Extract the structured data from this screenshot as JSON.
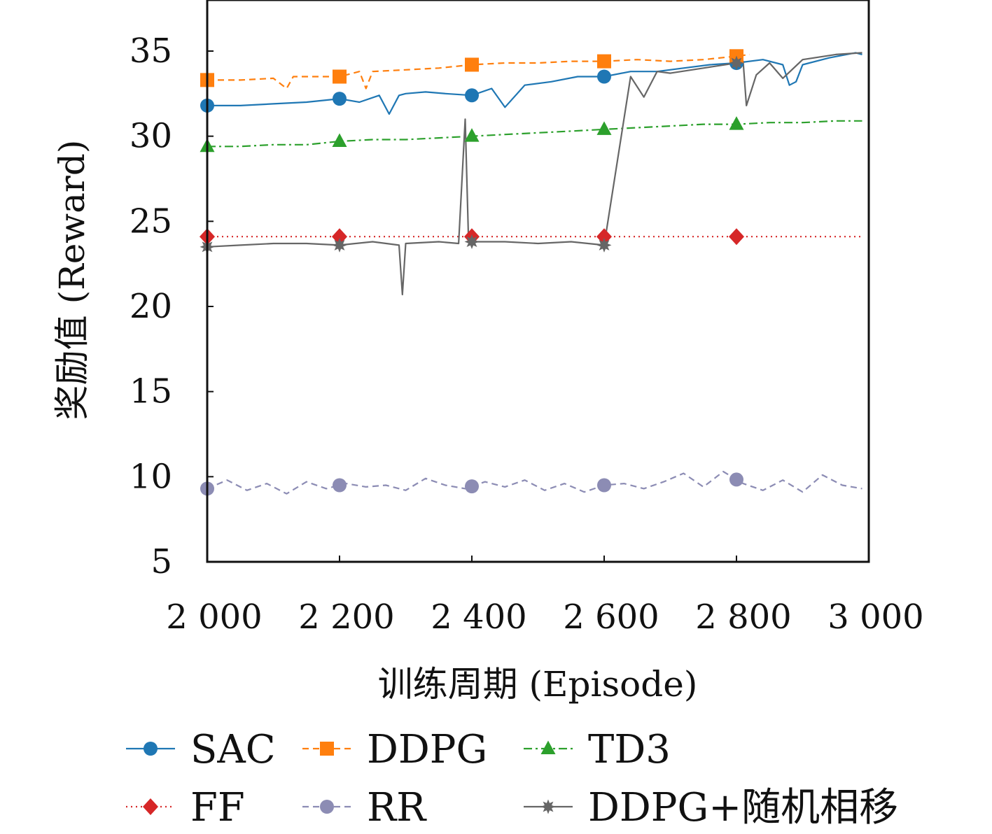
{
  "chart_data": {
    "type": "line",
    "xlabel": "训练周期 (Episode)",
    "ylabel": "奖励值 (Reward)",
    "xlim": [
      2000,
      3000
    ],
    "ylim": [
      5,
      38
    ],
    "xticks": [
      2000,
      2200,
      2400,
      2600,
      2800,
      3000
    ],
    "xtick_labels": [
      "2 000",
      "2 200",
      "2 400",
      "2 600",
      "2 800",
      "3 000"
    ],
    "yticks": [
      5,
      10,
      15,
      20,
      25,
      30,
      35
    ],
    "ytick_labels": [
      "5",
      "10",
      "15",
      "20",
      "25",
      "30",
      "35"
    ],
    "grid": false,
    "legend_position": "bottom",
    "series": [
      {
        "name": "SAC",
        "color": "#1f77b4",
        "line_style": "solid",
        "marker": "circle",
        "x": [
          2000,
          2050,
          2100,
          2150,
          2200,
          2230,
          2260,
          2275,
          2290,
          2300,
          2330,
          2360,
          2400,
          2430,
          2450,
          2480,
          2520,
          2560,
          2600,
          2640,
          2680,
          2720,
          2760,
          2800,
          2840,
          2870,
          2880,
          2890,
          2900,
          2940,
          2980,
          2990
        ],
        "y": [
          31.8,
          31.8,
          31.9,
          32.0,
          32.2,
          32.0,
          32.4,
          31.3,
          32.4,
          32.5,
          32.6,
          32.5,
          32.4,
          32.8,
          31.7,
          33.0,
          33.2,
          33.5,
          33.5,
          33.8,
          33.8,
          34.0,
          34.2,
          34.3,
          34.5,
          34.2,
          33.0,
          33.2,
          34.2,
          34.6,
          34.9,
          34.8
        ]
      },
      {
        "name": "DDPG",
        "color": "#ff7f0e",
        "line_style": "dashed",
        "marker": "square",
        "x": [
          2000,
          2050,
          2100,
          2120,
          2130,
          2150,
          2200,
          2230,
          2240,
          2250,
          2300,
          2350,
          2400,
          2450,
          2500,
          2550,
          2600,
          2650,
          2700,
          2750,
          2800,
          2820
        ],
        "y": [
          33.3,
          33.3,
          33.4,
          32.8,
          33.5,
          33.5,
          33.5,
          33.8,
          32.8,
          33.8,
          33.9,
          34.0,
          34.2,
          34.3,
          34.3,
          34.4,
          34.4,
          34.5,
          34.4,
          34.5,
          34.7,
          34.8
        ]
      },
      {
        "name": "TD3",
        "color": "#2ca02c",
        "line_style": "dashdot",
        "marker": "triangle",
        "x": [
          2000,
          2050,
          2100,
          2150,
          2200,
          2250,
          2300,
          2350,
          2400,
          2450,
          2500,
          2550,
          2600,
          2650,
          2700,
          2750,
          2800,
          2850,
          2900,
          2950,
          2990
        ],
        "y": [
          29.4,
          29.4,
          29.5,
          29.5,
          29.7,
          29.8,
          29.8,
          29.9,
          30.0,
          30.1,
          30.2,
          30.3,
          30.4,
          30.5,
          30.6,
          30.7,
          30.7,
          30.8,
          30.8,
          30.9,
          30.9
        ]
      },
      {
        "name": "FF",
        "color": "#d62728",
        "line_style": "dotted",
        "marker": "diamond",
        "x": [
          2000,
          2200,
          2400,
          2600,
          2800,
          2990
        ],
        "y": [
          24.1,
          24.1,
          24.1,
          24.1,
          24.1,
          24.1
        ]
      },
      {
        "name": "RR",
        "color": "#8c8cb4",
        "line_style": "dashed",
        "marker": "circle",
        "x": [
          2000,
          2030,
          2060,
          2090,
          2120,
          2150,
          2180,
          2210,
          2240,
          2270,
          2300,
          2330,
          2360,
          2390,
          2420,
          2450,
          2480,
          2510,
          2540,
          2570,
          2600,
          2630,
          2660,
          2690,
          2720,
          2750,
          2780,
          2810,
          2840,
          2870,
          2900,
          2930,
          2960,
          2990
        ],
        "y": [
          9.3,
          9.8,
          9.2,
          9.6,
          9.0,
          9.7,
          9.3,
          9.6,
          9.4,
          9.5,
          9.2,
          9.9,
          9.5,
          9.3,
          9.7,
          9.4,
          9.8,
          9.2,
          9.6,
          9.1,
          9.5,
          9.6,
          9.3,
          9.7,
          10.2,
          9.4,
          10.3,
          9.6,
          9.2,
          9.8,
          9.1,
          10.1,
          9.5,
          9.3
        ]
      },
      {
        "name": "DDPG+随机相移",
        "color": "#666666",
        "line_style": "solid",
        "marker": "star",
        "x": [
          2000,
          2050,
          2100,
          2150,
          2200,
          2250,
          2290,
          2295,
          2300,
          2350,
          2380,
          2390,
          2395,
          2400,
          2450,
          2500,
          2550,
          2600,
          2640,
          2660,
          2680,
          2700,
          2750,
          2800,
          2810,
          2815,
          2830,
          2850,
          2870,
          2900,
          2950,
          2990
        ],
        "y": [
          23.5,
          23.6,
          23.7,
          23.7,
          23.6,
          23.8,
          23.6,
          20.7,
          23.7,
          23.8,
          23.7,
          31.0,
          23.8,
          23.8,
          23.8,
          23.7,
          23.8,
          23.6,
          33.5,
          32.3,
          33.8,
          33.7,
          34.0,
          34.3,
          34.4,
          31.8,
          33.6,
          34.3,
          33.4,
          34.5,
          34.8,
          34.9
        ]
      }
    ]
  }
}
